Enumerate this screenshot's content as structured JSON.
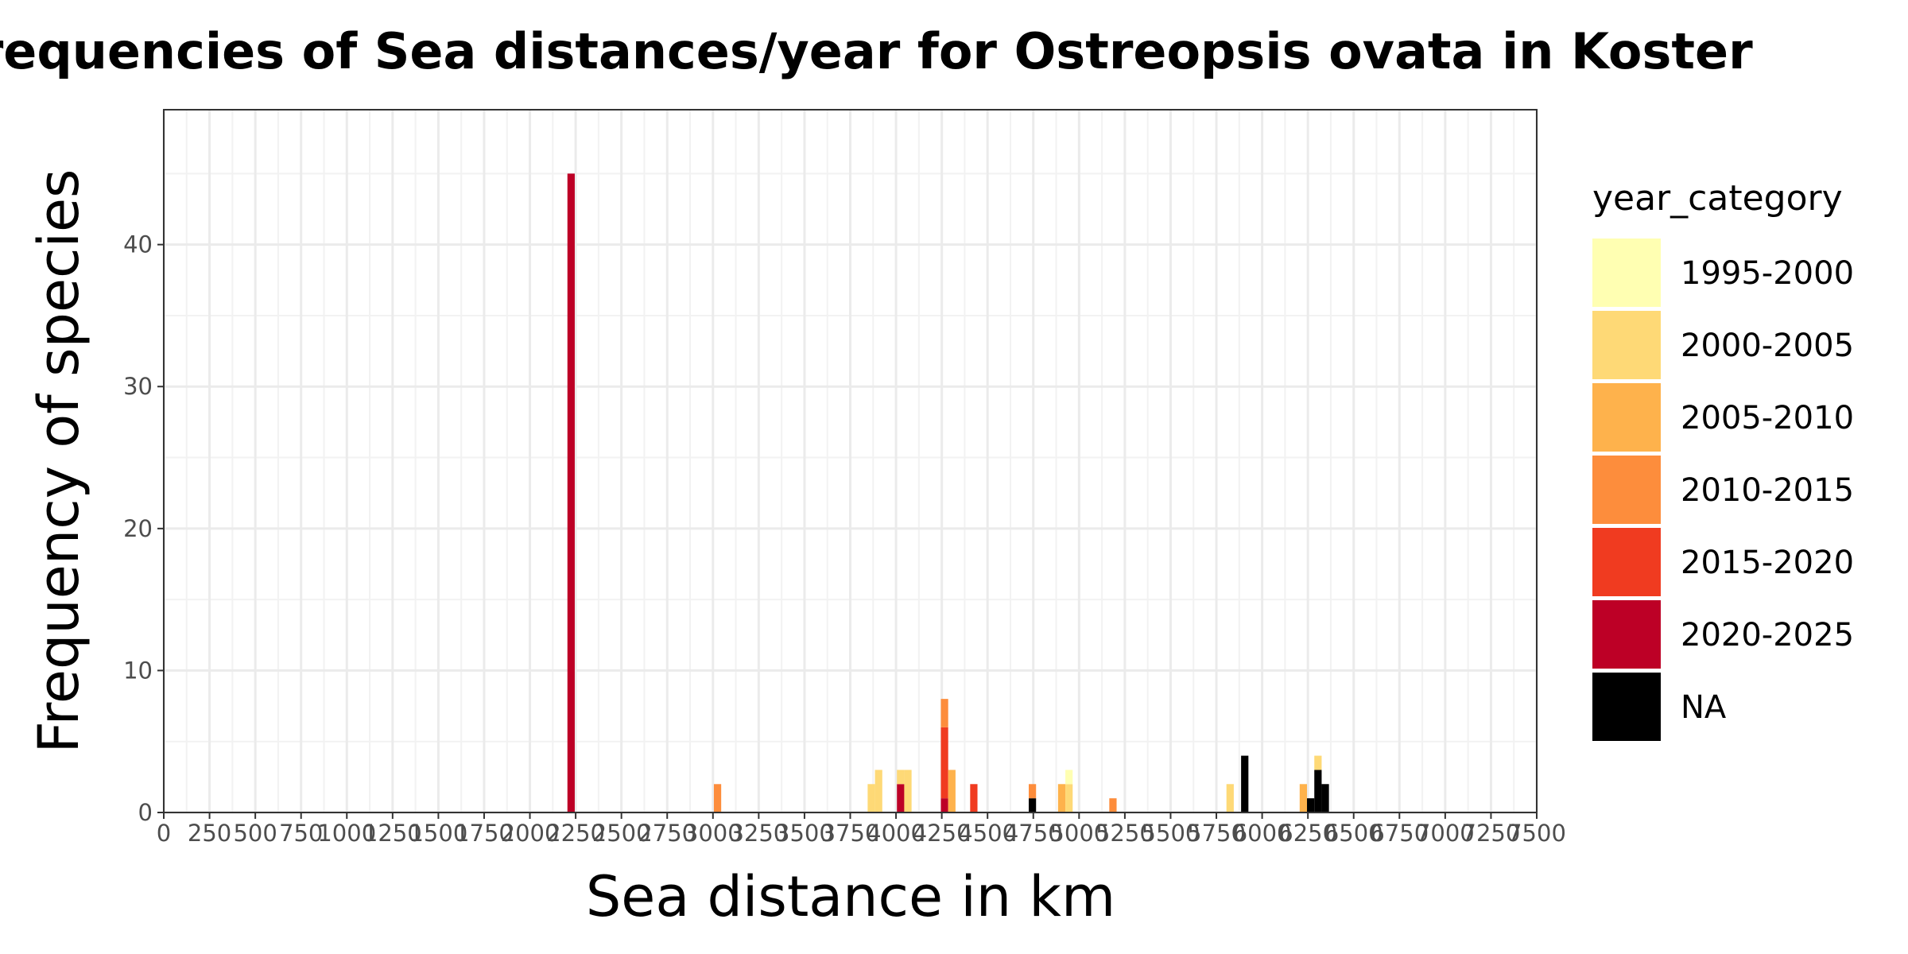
{
  "chart_data": {
    "type": "bar",
    "title": "Frequencies of Sea distances/year for Ostreopsis ovata in Koster",
    "xlabel": "Sea distance in km",
    "ylabel": "Frequency of species",
    "xlim": [
      0,
      7500
    ],
    "ylim": [
      0,
      49.5
    ],
    "x_ticks": [
      "0",
      "250",
      "500",
      "750",
      "1000",
      "1250",
      "1500",
      "1750",
      "2000",
      "2250",
      "2500",
      "2750",
      "3000",
      "3250",
      "3500",
      "3750",
      "4000",
      "4250",
      "4500",
      "4750",
      "5000",
      "5250",
      "5500",
      "5750",
      "6000",
      "6250",
      "6500",
      "6750",
      "7000",
      "7250",
      "7500"
    ],
    "x_tick_values": [
      0,
      250,
      500,
      750,
      1000,
      1250,
      1500,
      1750,
      2000,
      2250,
      2500,
      2750,
      3000,
      3250,
      3500,
      3750,
      4000,
      4250,
      4500,
      4750,
      5000,
      5250,
      5500,
      5750,
      6000,
      6250,
      6500,
      6750,
      7000,
      7250,
      7500
    ],
    "y_ticks": [
      "0",
      "10",
      "20",
      "30",
      "40"
    ],
    "y_tick_values": [
      0,
      10,
      20,
      30,
      40
    ],
    "grid": true,
    "legend_title": "year_category",
    "legend_position": "right",
    "series": [
      {
        "name": "1995-2000",
        "color": "#FFFFB2"
      },
      {
        "name": "2000-2005",
        "color": "#FED976"
      },
      {
        "name": "2005-2010",
        "color": "#FEB24C"
      },
      {
        "name": "2010-2015",
        "color": "#FD8D3C"
      },
      {
        "name": "2015-2020",
        "color": "#F03B20"
      },
      {
        "name": "2020-2025",
        "color": "#BD0026"
      },
      {
        "name": "NA",
        "color": "#000000"
      }
    ],
    "bin_width": 40,
    "bars": [
      {
        "x": 2225,
        "category": "2020-2025",
        "value": 45
      },
      {
        "x": 3025,
        "category": "2010-2015",
        "value": 2
      },
      {
        "x": 3865,
        "category": "2000-2005",
        "value": 2
      },
      {
        "x": 3905,
        "category": "2000-2005",
        "value": 3
      },
      {
        "x": 4025,
        "category": "2000-2005",
        "value": 1
      },
      {
        "x": 4025,
        "category": "2020-2025",
        "value": 2
      },
      {
        "x": 4065,
        "category": "2000-2005",
        "value": 3
      },
      {
        "x": 4265,
        "category": "2020-2025",
        "value": 1
      },
      {
        "x": 4265,
        "category": "2015-2020",
        "value": 5
      },
      {
        "x": 4265,
        "category": "2010-2015",
        "value": 2
      },
      {
        "x": 4305,
        "category": "2005-2010",
        "value": 3
      },
      {
        "x": 4425,
        "category": "2015-2020",
        "value": 2
      },
      {
        "x": 4745,
        "category": "NA",
        "value": 1
      },
      {
        "x": 4745,
        "category": "2010-2015",
        "value": 1
      },
      {
        "x": 4905,
        "category": "2005-2010",
        "value": 2
      },
      {
        "x": 4945,
        "category": "2000-2005",
        "value": 2
      },
      {
        "x": 4945,
        "category": "1995-2000",
        "value": 1
      },
      {
        "x": 5185,
        "category": "2010-2015",
        "value": 1
      },
      {
        "x": 5825,
        "category": "2000-2005",
        "value": 2
      },
      {
        "x": 5905,
        "category": "NA",
        "value": 4
      },
      {
        "x": 6225,
        "category": "2005-2010",
        "value": 2
      },
      {
        "x": 6265,
        "category": "NA",
        "value": 1
      },
      {
        "x": 6305,
        "category": "NA",
        "value": 3
      },
      {
        "x": 6305,
        "category": "2000-2005",
        "value": 1
      },
      {
        "x": 6345,
        "category": "NA",
        "value": 2
      }
    ]
  }
}
